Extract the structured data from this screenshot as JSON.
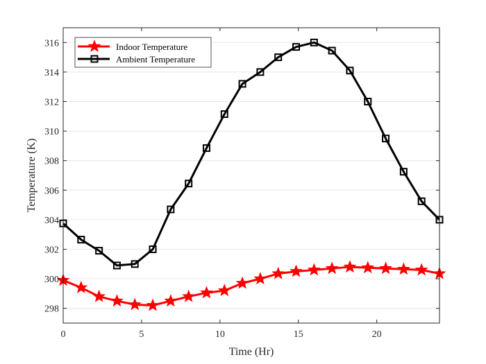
{
  "chart_data": {
    "type": "line",
    "xlabel": "Time (Hr)",
    "ylabel": "Temperature (K)",
    "xlim": [
      0,
      24
    ],
    "ylim": [
      297,
      317
    ],
    "xticks": [
      0,
      5,
      10,
      15,
      20
    ],
    "yticks": [
      298,
      300,
      302,
      304,
      306,
      308,
      310,
      312,
      314,
      316
    ],
    "grid": "horizontal",
    "legend_position": "top-left",
    "x": [
      0,
      1.143,
      2.286,
      3.429,
      4.571,
      5.714,
      6.857,
      8.0,
      9.143,
      10.286,
      11.429,
      12.571,
      13.714,
      14.857,
      16.0,
      17.143,
      18.286,
      19.429,
      20.571,
      21.714,
      22.857,
      24.0
    ],
    "series": [
      {
        "name": "Indoor Temperature",
        "color": "#ff0000",
        "marker": "star",
        "values": [
          299.9,
          299.4,
          298.8,
          298.5,
          298.25,
          298.2,
          298.5,
          298.8,
          299.05,
          299.2,
          299.7,
          300.0,
          300.35,
          300.5,
          300.6,
          300.7,
          300.8,
          300.75,
          300.7,
          300.65,
          300.6,
          300.35
        ]
      },
      {
        "name": "Ambient Temperature",
        "color": "#000000",
        "marker": "square",
        "values": [
          303.75,
          302.65,
          301.9,
          300.9,
          301.0,
          302.0,
          304.7,
          306.45,
          308.85,
          311.15,
          313.2,
          314.0,
          315.0,
          315.7,
          316.0,
          315.45,
          314.1,
          312.0,
          309.5,
          307.25,
          305.25,
          304.0
        ]
      }
    ]
  }
}
